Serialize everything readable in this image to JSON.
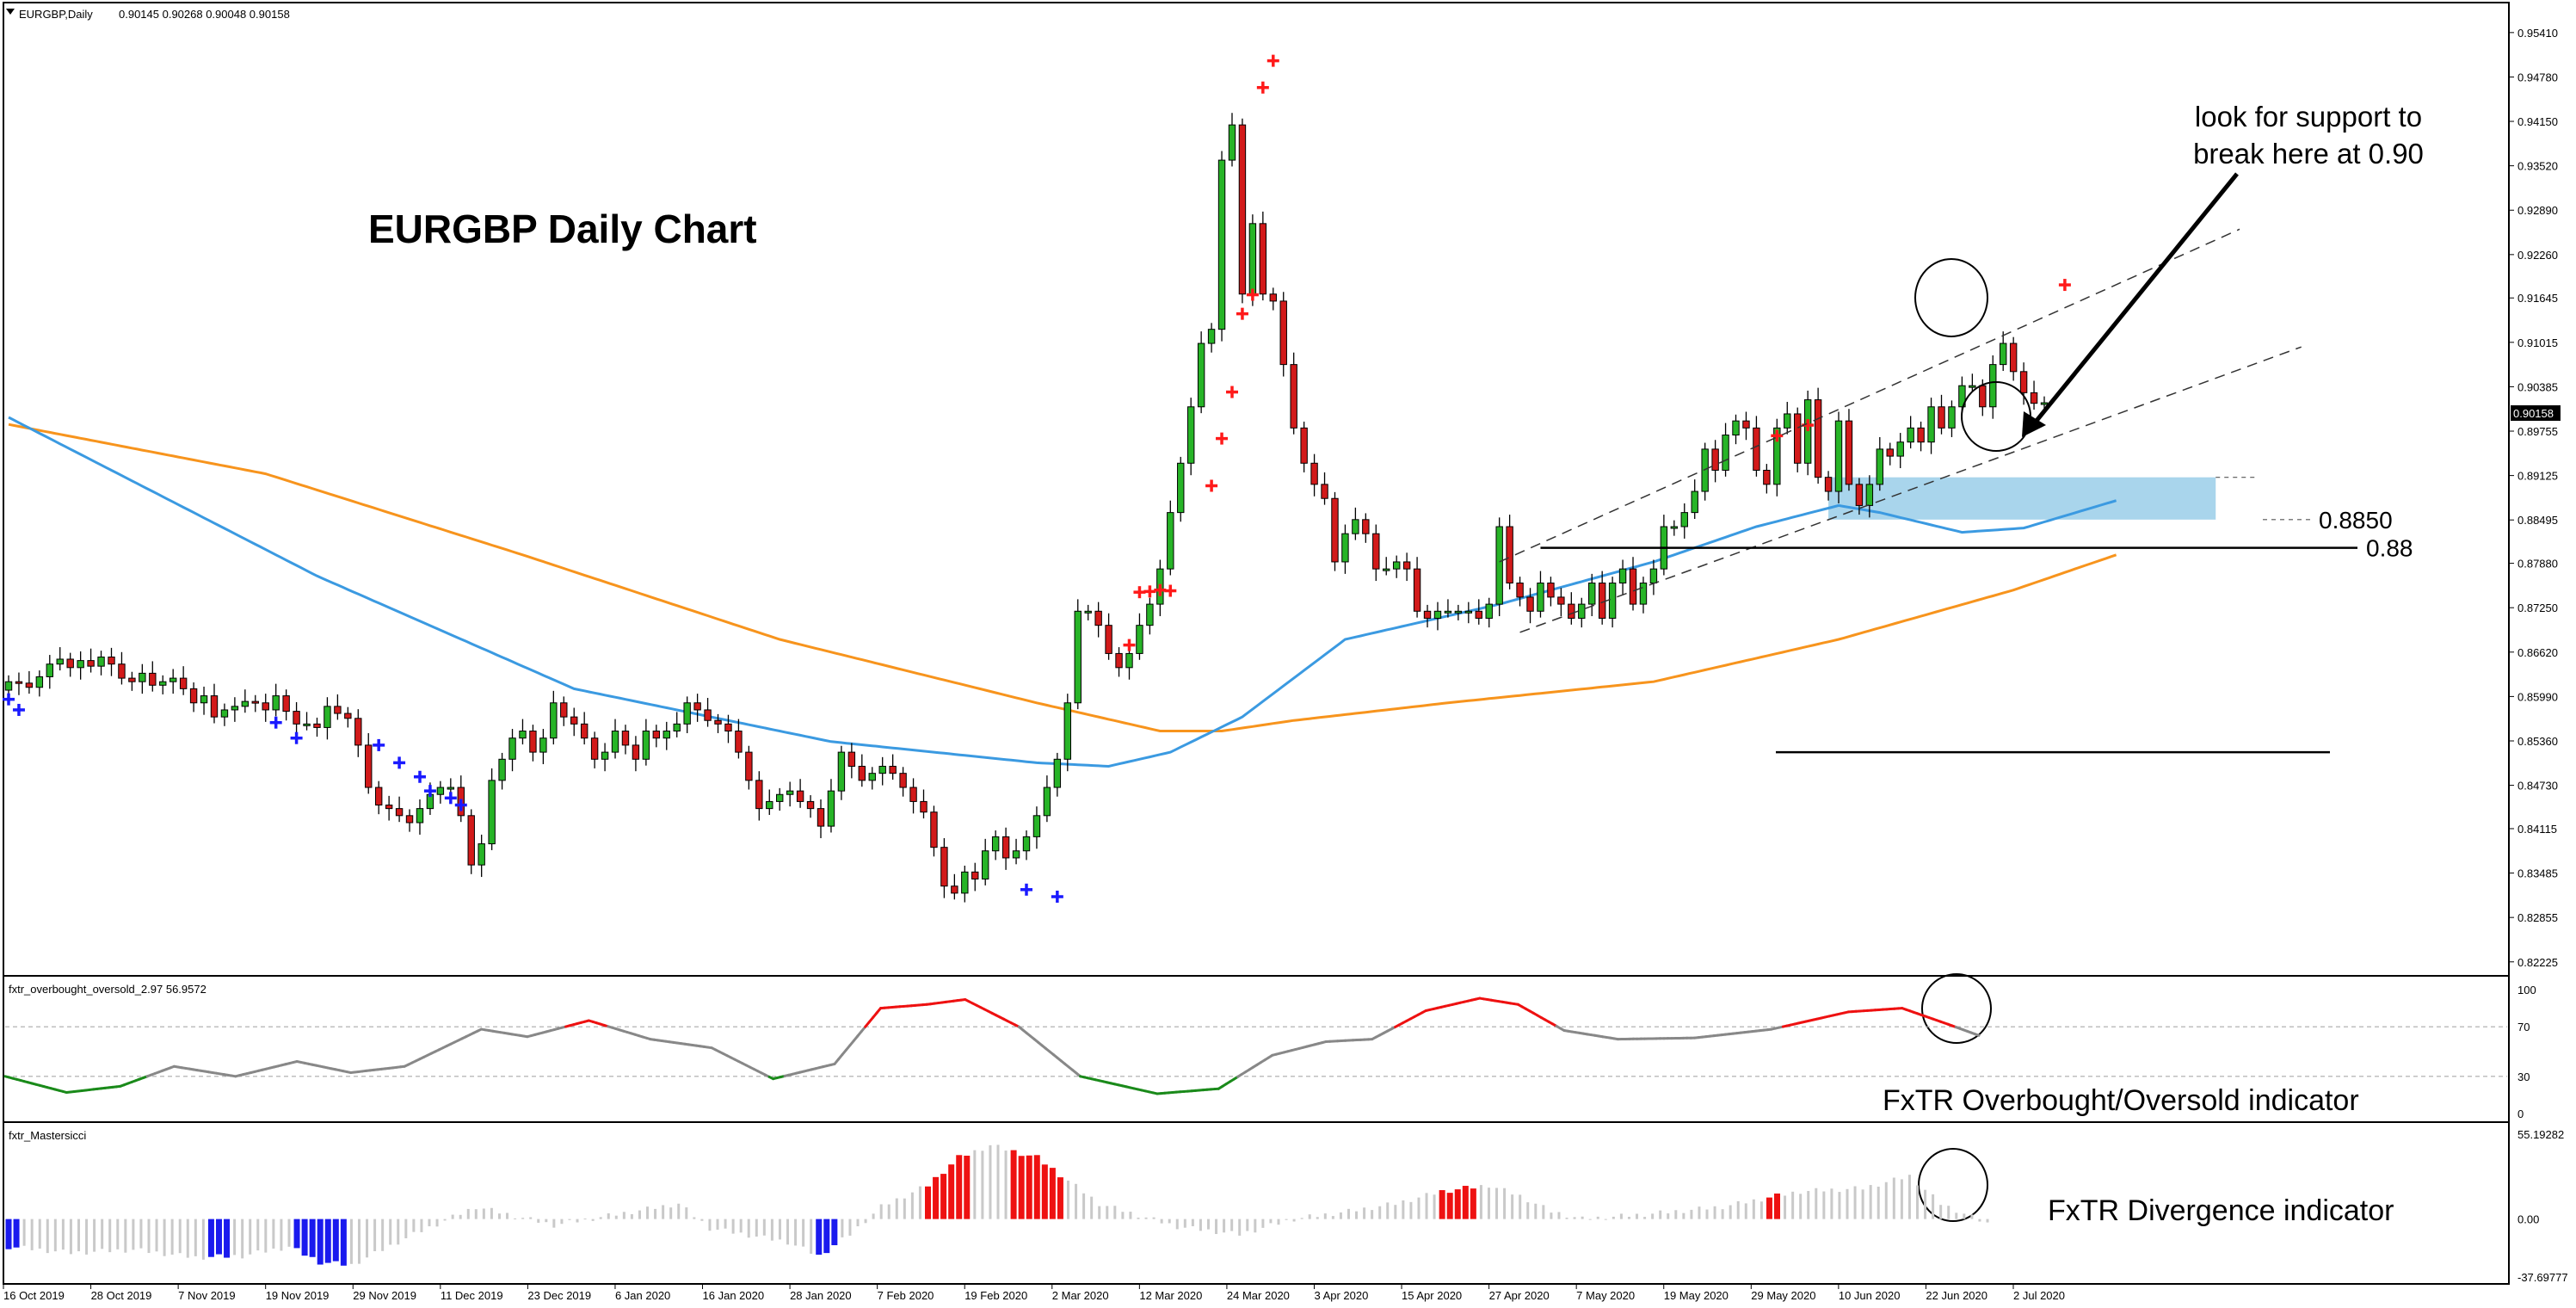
{
  "chart_data": {
    "type": "candlestick",
    "symbol_header": "EURGBP,Daily",
    "ohlc_header": "0.90145 0.90268 0.90048 0.90158",
    "title": "EURGBP Daily Chart",
    "current_price": "0.90158",
    "price_ticks": [
      "0.95410",
      "0.94780",
      "0.94150",
      "0.93520",
      "0.92890",
      "0.92260",
      "0.91645",
      "0.91015",
      "0.90385",
      "0.89755",
      "0.89125",
      "0.88495",
      "0.87880",
      "0.87250",
      "0.86620",
      "0.85990",
      "0.85360",
      "0.84730",
      "0.84115",
      "0.83485",
      "0.82855",
      "0.82225"
    ],
    "ylim": [
      0.821,
      0.9575
    ],
    "date_labels": [
      "16 Oct 2019",
      "28 Oct 2019",
      "7 Nov 2019",
      "19 Nov 2019",
      "29 Nov 2019",
      "11 Dec 2019",
      "23 Dec 2019",
      "6 Jan 2020",
      "16 Jan 2020",
      "28 Jan 2020",
      "7 Feb 2020",
      "19 Feb 2020",
      "2 Mar 2020",
      "12 Mar 2020",
      "24 Mar 2020",
      "3 Apr 2020",
      "15 Apr 2020",
      "27 Apr 2020",
      "7 May 2020",
      "19 May 2020",
      "29 May 2020",
      "10 Jun 2020",
      "22 Jun 2020",
      "2 Jul 2020"
    ],
    "candle_closes": [
      0.862,
      0.8618,
      0.8612,
      0.8627,
      0.8645,
      0.8652,
      0.864,
      0.865,
      0.8642,
      0.8655,
      0.8645,
      0.8625,
      0.862,
      0.8632,
      0.8615,
      0.862,
      0.8625,
      0.861,
      0.859,
      0.86,
      0.857,
      0.858,
      0.8585,
      0.8592,
      0.859,
      0.858,
      0.86,
      0.8578,
      0.856,
      0.856,
      0.8555,
      0.8585,
      0.8575,
      0.8568,
      0.853,
      0.847,
      0.8445,
      0.844,
      0.843,
      0.842,
      0.844,
      0.846,
      0.847,
      0.847,
      0.843,
      0.836,
      0.839,
      0.848,
      0.851,
      0.854,
      0.855,
      0.852,
      0.854,
      0.859,
      0.857,
      0.856,
      0.854,
      0.851,
      0.852,
      0.855,
      0.853,
      0.851,
      0.855,
      0.854,
      0.855,
      0.856,
      0.859,
      0.858,
      0.8565,
      0.856,
      0.855,
      0.852,
      0.848,
      0.844,
      0.845,
      0.846,
      0.8465,
      0.845,
      0.844,
      0.8415,
      0.8465,
      0.852,
      0.85,
      0.848,
      0.849,
      0.85,
      0.849,
      0.847,
      0.845,
      0.8435,
      0.8385,
      0.833,
      0.832,
      0.835,
      0.834,
      0.838,
      0.84,
      0.837,
      0.838,
      0.84,
      0.843,
      0.847,
      0.851,
      0.859,
      0.872,
      0.872,
      0.87,
      0.866,
      0.864,
      0.866,
      0.87,
      0.873,
      0.878,
      0.886,
      0.893,
      0.901,
      0.91,
      0.912,
      0.936,
      0.941,
      0.917,
      0.927,
      0.917,
      0.916,
      0.907,
      0.898,
      0.893,
      0.89,
      0.888,
      0.879,
      0.883,
      0.885,
      0.883,
      0.878,
      0.878,
      0.879,
      0.878,
      0.872,
      0.871,
      0.872,
      0.872,
      0.872,
      0.872,
      0.871,
      0.873,
      0.884,
      0.876,
      0.874,
      0.872,
      0.876,
      0.874,
      0.873,
      0.871,
      0.873,
      0.876,
      0.871,
      0.876,
      0.878,
      0.873,
      0.876,
      0.878,
      0.884,
      0.884,
      0.886,
      0.889,
      0.895,
      0.892,
      0.897,
      0.899,
      0.898,
      0.892,
      0.89,
      0.898,
      0.9,
      0.893,
      0.902,
      0.891,
      0.889,
      0.899,
      0.89,
      0.887,
      0.89,
      0.895,
      0.894,
      0.896,
      0.898,
      0.896,
      0.901,
      0.898,
      0.901,
      0.904,
      0.904,
      0.901,
      0.907,
      0.91,
      0.906,
      0.903,
      0.9015,
      0.90158
    ],
    "sma_fast_name": "",
    "sma_slow_name": "",
    "sma_fast_anchors": [
      [
        0,
        0.8995
      ],
      [
        30,
        0.877
      ],
      [
        55,
        0.861
      ],
      [
        80,
        0.8535
      ],
      [
        100,
        0.8505
      ],
      [
        107,
        0.85
      ],
      [
        113,
        0.852
      ],
      [
        120,
        0.857
      ],
      [
        130,
        0.868
      ],
      [
        145,
        0.873
      ],
      [
        160,
        0.879
      ],
      [
        170,
        0.884
      ],
      [
        178,
        0.887
      ],
      [
        182,
        0.886
      ],
      [
        190,
        0.8832
      ],
      [
        196,
        0.8838
      ],
      [
        205,
        0.8877
      ]
    ],
    "sma_slow_anchors": [
      [
        0,
        0.8985
      ],
      [
        25,
        0.8915
      ],
      [
        50,
        0.88
      ],
      [
        75,
        0.868
      ],
      [
        100,
        0.859
      ],
      [
        112,
        0.855
      ],
      [
        118,
        0.855
      ],
      [
        125,
        0.8565
      ],
      [
        140,
        0.859
      ],
      [
        160,
        0.862
      ],
      [
        178,
        0.868
      ],
      [
        195,
        0.875
      ],
      [
        205,
        0.88
      ]
    ],
    "up_arrow_marks": [
      [
        0,
        0.8595
      ],
      [
        1,
        0.858
      ],
      [
        26,
        0.8562
      ],
      [
        28,
        0.854
      ],
      [
        36,
        0.853
      ],
      [
        38,
        0.8505
      ],
      [
        40,
        0.8485
      ],
      [
        41,
        0.8465
      ],
      [
        43,
        0.8455
      ],
      [
        44,
        0.8445
      ],
      [
        99,
        0.8325
      ],
      [
        102,
        0.8315
      ]
    ],
    "down_arrow_marks": [
      [
        109,
        0.8672
      ],
      [
        110,
        0.8747
      ],
      [
        111,
        0.8748
      ],
      [
        112,
        0.875
      ],
      [
        113,
        0.8749
      ],
      [
        117,
        0.8898
      ],
      [
        118,
        0.8965
      ],
      [
        119,
        0.9031
      ],
      [
        120,
        0.9142
      ],
      [
        121,
        0.9169
      ],
      [
        122,
        0.9463
      ],
      [
        123,
        0.9501
      ],
      [
        172,
        0.8969
      ],
      [
        175,
        0.8984
      ],
      [
        200,
        0.9183
      ]
    ],
    "channel_lines": [
      {
        "from": [
          145,
          0.879
        ],
        "to": [
          217,
          0.9262
        ]
      },
      {
        "from": [
          147,
          0.869
        ],
        "to": [
          223,
          0.9095
        ]
      }
    ],
    "support_zone": {
      "from_index": 177,
      "to_index": 213,
      "top": 0.891,
      "bottom": 0.885
    },
    "levels": [
      {
        "label": "0.8850",
        "value": 0.885
      },
      {
        "label": "0.88",
        "value": 0.881
      },
      {
        "label": "",
        "value": 0.852
      }
    ],
    "annotation_lines": [
      "look for support to",
      "break here at 0.90"
    ],
    "oscillator": {
      "header": "fxtr_overbought_oversold_2.97 56.9572",
      "ticks": [
        "100",
        "70",
        "30",
        "0"
      ],
      "range": [
        0,
        100
      ],
      "overbought": 70,
      "oversold": 30,
      "caption": "FxTR Overbought/Oversold indicator",
      "anchors": [
        [
          0,
          30
        ],
        [
          8,
          17
        ],
        [
          15,
          22
        ],
        [
          22,
          38
        ],
        [
          30,
          30
        ],
        [
          38,
          42
        ],
        [
          45,
          33
        ],
        [
          52,
          38
        ],
        [
          62,
          68
        ],
        [
          68,
          62
        ],
        [
          76,
          75
        ],
        [
          84,
          60
        ],
        [
          92,
          53
        ],
        [
          100,
          28
        ],
        [
          108,
          40
        ],
        [
          114,
          85
        ],
        [
          120,
          88
        ],
        [
          125,
          92
        ],
        [
          132,
          70
        ],
        [
          140,
          30
        ],
        [
          150,
          16
        ],
        [
          158,
          20
        ],
        [
          165,
          47
        ],
        [
          172,
          58
        ],
        [
          178,
          60
        ],
        [
          185,
          83
        ],
        [
          192,
          93
        ],
        [
          197,
          88
        ],
        [
          203,
          67
        ],
        [
          210,
          60
        ],
        [
          220,
          61
        ],
        [
          230,
          68
        ],
        [
          240,
          82
        ],
        [
          247,
          85
        ],
        [
          253,
          72
        ],
        [
          257,
          63
        ]
      ]
    },
    "divergence": {
      "header": "fxtr_Mastersicci",
      "ticks": [
        "55.19282",
        "0.00",
        "-37.69777"
      ],
      "range": [
        -37.69777,
        55.19282
      ],
      "caption": "FxTR Divergence indicator",
      "anchors": [
        [
          0,
          -18
        ],
        [
          8,
          -22
        ],
        [
          16,
          -20
        ],
        [
          24,
          -25
        ],
        [
          30,
          -24
        ],
        [
          36,
          -18
        ],
        [
          40,
          -28
        ],
        [
          44,
          -30
        ],
        [
          52,
          -10
        ],
        [
          60,
          8
        ],
        [
          70,
          -4
        ],
        [
          78,
          3
        ],
        [
          86,
          10
        ],
        [
          90,
          -6
        ],
        [
          100,
          -15
        ],
        [
          104,
          -24
        ],
        [
          108,
          -10
        ],
        [
          112,
          8
        ],
        [
          118,
          22
        ],
        [
          122,
          40
        ],
        [
          126,
          48
        ],
        [
          132,
          40
        ],
        [
          140,
          10
        ],
        [
          150,
          -5
        ],
        [
          158,
          -10
        ],
        [
          165,
          0
        ],
        [
          172,
          5
        ],
        [
          178,
          10
        ],
        [
          184,
          18
        ],
        [
          190,
          22
        ],
        [
          194,
          15
        ],
        [
          198,
          5
        ],
        [
          202,
          0
        ],
        [
          210,
          3
        ],
        [
          220,
          8
        ],
        [
          230,
          18
        ],
        [
          238,
          20
        ],
        [
          244,
          28
        ],
        [
          248,
          10
        ],
        [
          254,
          -3
        ]
      ],
      "red_ranges": [
        [
          118,
          123
        ],
        [
          129,
          135
        ],
        [
          184,
          188
        ],
        [
          226,
          227
        ]
      ],
      "blue_ranges": [
        [
          0,
          1
        ],
        [
          26,
          28
        ],
        [
          37,
          43
        ],
        [
          104,
          106
        ]
      ]
    }
  }
}
